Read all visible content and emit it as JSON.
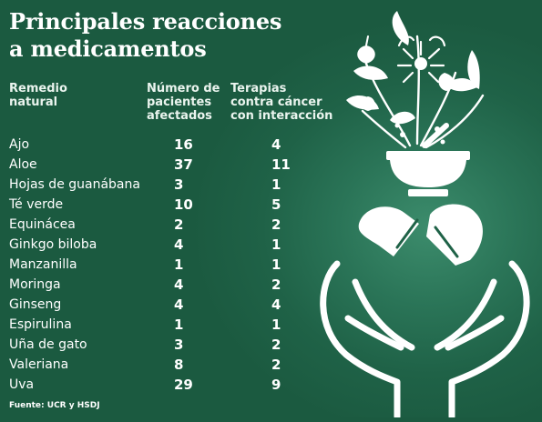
{
  "title_line1": "Principales reacciones",
  "title_line2": "a medicamentos",
  "columns": {
    "remedy": [
      "Remedio",
      "natural"
    ],
    "patients": [
      "Número de",
      "pacientes",
      "afectados"
    ],
    "therapies": [
      "Terapias",
      "contra cáncer",
      "con interacción"
    ]
  },
  "chart_data": {
    "type": "table",
    "columns": [
      "Remedio natural",
      "Número de pacientes afectados",
      "Terapias contra cáncer con interacción"
    ],
    "rows": [
      {
        "remedy": "Ajo",
        "patients": 16,
        "therapies": 4
      },
      {
        "remedy": "Aloe",
        "patients": 37,
        "therapies": 11
      },
      {
        "remedy": "Hojas de guanábana",
        "patients": 3,
        "therapies": 1
      },
      {
        "remedy": "Té verde",
        "patients": 10,
        "therapies": 5
      },
      {
        "remedy": "Equinácea",
        "patients": 2,
        "therapies": 2
      },
      {
        "remedy": "Ginkgo biloba",
        "patients": 4,
        "therapies": 1
      },
      {
        "remedy": "Manzanilla",
        "patients": 1,
        "therapies": 1
      },
      {
        "remedy": "Moringa",
        "patients": 4,
        "therapies": 2
      },
      {
        "remedy": "Ginseng",
        "patients": 4,
        "therapies": 4
      },
      {
        "remedy": "Espirulina",
        "patients": 1,
        "therapies": 1
      },
      {
        "remedy": "Uña de gato",
        "patients": 3,
        "therapies": 2
      },
      {
        "remedy": "Valeriana",
        "patients": 8,
        "therapies": 2
      },
      {
        "remedy": "Uva",
        "patients": 29,
        "therapies": 9
      }
    ]
  },
  "source": "Fuente: UCR y HSDJ",
  "colors": {
    "background": "#1f6247",
    "glow": "#3c8c6c",
    "text": "#ffffff"
  },
  "illustration": "hands-mortar-pills-herbs-icon"
}
